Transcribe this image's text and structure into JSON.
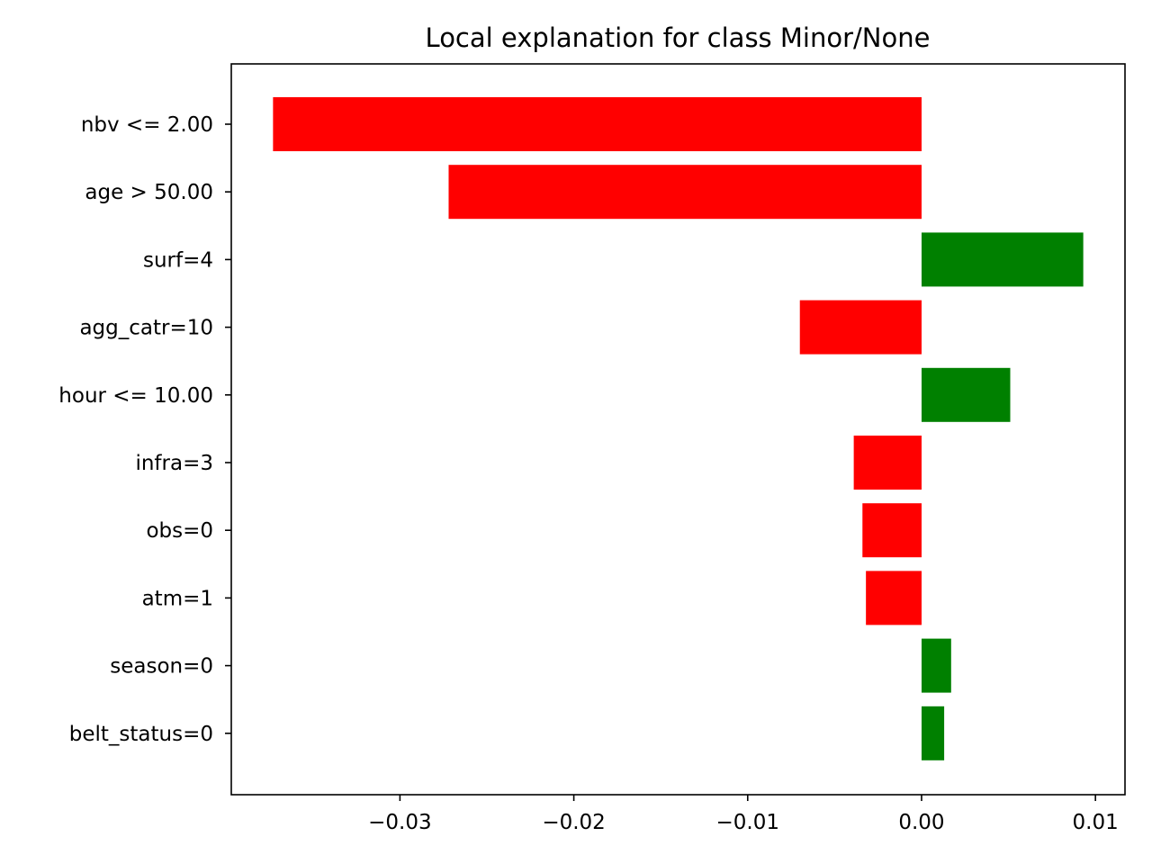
{
  "chart_data": {
    "type": "bar",
    "orientation": "horizontal",
    "title": "Local explanation for class Minor/None",
    "xlabel": "",
    "ylabel": "",
    "categories": [
      "nbv <= 2.00",
      "age > 50.00",
      "surf=4",
      "agg_catr=10",
      "hour <= 10.00",
      "infra=3",
      "obs=0",
      "atm=1",
      "season=0",
      "belt_status=0"
    ],
    "values": [
      -0.0373,
      -0.0272,
      0.0093,
      -0.007,
      0.0051,
      -0.0039,
      -0.0034,
      -0.0032,
      0.0017,
      0.0013
    ],
    "xlim": [
      -0.0397,
      0.0117
    ],
    "xticks": [
      -0.03,
      -0.02,
      -0.01,
      0.0,
      0.01
    ],
    "xtick_labels": [
      "−0.03",
      "−0.02",
      "−0.01",
      "0.00",
      "0.01"
    ],
    "grid": false,
    "legend": "none",
    "colors": {
      "positive": "#008000",
      "negative": "#ff0000"
    }
  }
}
